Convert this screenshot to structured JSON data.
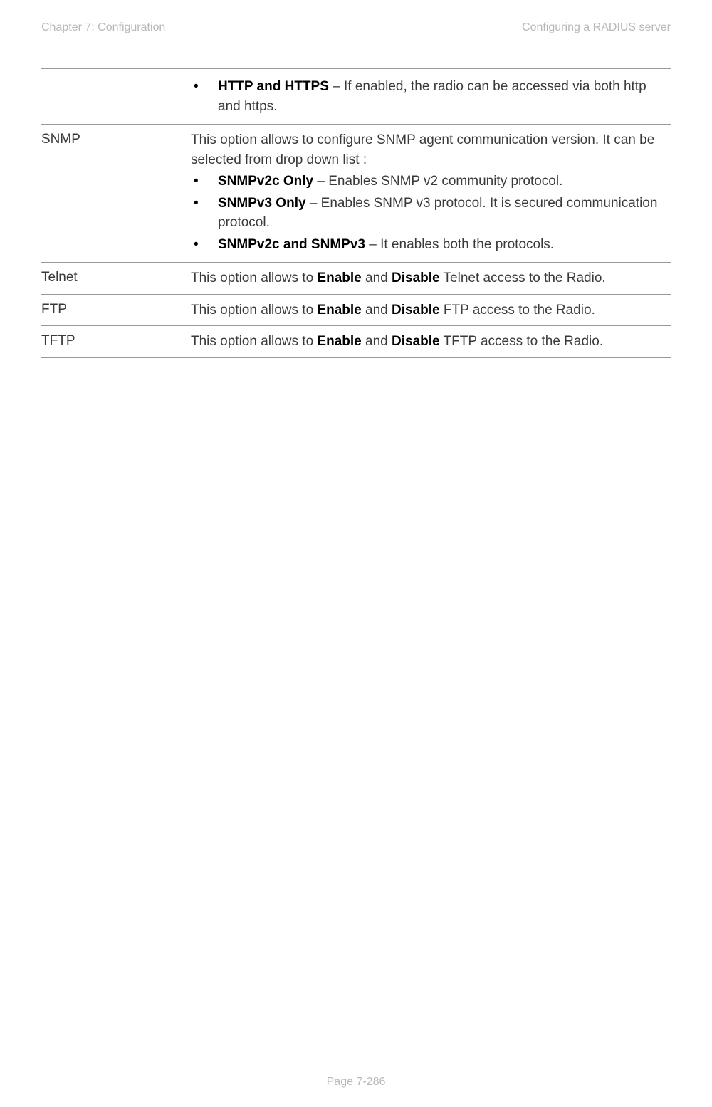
{
  "header": {
    "left": "Chapter 7:  Configuration",
    "right": "Configuring a RADIUS server"
  },
  "rows": [
    {
      "label": "",
      "intro": "",
      "bullets": [
        {
          "bold": "HTTP and HTTPS",
          "rest": " – If enabled, the radio can be accessed via both http and https."
        }
      ]
    },
    {
      "label": "SNMP",
      "intro": "This option allows to configure SNMP agent communication version. It can be selected from drop down list :",
      "bullets": [
        {
          "bold": "SNMPv2c Only",
          "rest": " – Enables SNMP v2 community protocol."
        },
        {
          "bold": "SNMPv3 Only",
          "rest": " – Enables SNMP v3 protocol. It is secured communication protocol."
        },
        {
          "bold": "SNMPv2c and SNMPv3",
          "rest": " – It enables both the protocols."
        }
      ]
    },
    {
      "label": "Telnet",
      "plain": {
        "pre": "This option allows to ",
        "b1": "Enable",
        "mid": " and ",
        "b2": "Disable",
        "post": " Telnet access to the Radio."
      }
    },
    {
      "label": "FTP",
      "plain": {
        "pre": "This option allows to ",
        "b1": "Enable",
        "mid": " and ",
        "b2": "Disable",
        "post": " FTP access to the Radio."
      }
    },
    {
      "label": "TFTP",
      "plain": {
        "pre": "This option allows to ",
        "b1": "Enable",
        "mid": " and ",
        "b2": "Disable",
        "post": " TFTP access to the Radio."
      }
    }
  ],
  "footer": "Page 7-286"
}
